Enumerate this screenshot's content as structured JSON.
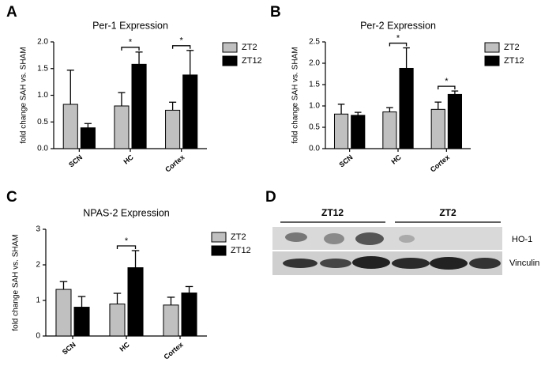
{
  "chart_data": [
    {
      "type": "bar",
      "panel": "A",
      "title": "Per-1 Expression",
      "y_label": "fold change SAH vs. SHAM",
      "categories": [
        "SCN",
        "HC",
        "Cortex"
      ],
      "series": [
        {
          "name": "ZT2",
          "color": "#c0c0c0",
          "values": [
            0.83,
            0.8,
            0.72
          ],
          "errors": [
            0.64,
            0.25,
            0.15
          ]
        },
        {
          "name": "ZT12",
          "color": "#000000",
          "values": [
            0.39,
            1.58,
            1.38
          ],
          "errors": [
            0.08,
            0.23,
            0.46
          ]
        }
      ],
      "ylim": [
        0,
        2.0
      ],
      "yticks": [
        {
          "value": 0,
          "label": "0.0"
        },
        0.5,
        {
          "value": 1,
          "label": "1.0"
        },
        1.5,
        {
          "value": 2,
          "label": "2.0"
        }
      ],
      "annotations": [
        {
          "category": 1,
          "text": "*"
        },
        {
          "category": 2,
          "text": "*"
        }
      ]
    },
    {
      "type": "bar",
      "panel": "B",
      "title": "Per-2 Expression",
      "y_label": "fold change SAH vs. SHAM",
      "categories": [
        "SCN",
        "HC",
        "Cortex"
      ],
      "series": [
        {
          "name": "ZT2",
          "color": "#c0c0c0",
          "values": [
            0.81,
            0.86,
            0.92
          ],
          "errors": [
            0.23,
            0.1,
            0.17
          ]
        },
        {
          "name": "ZT12",
          "color": "#000000",
          "values": [
            0.78,
            1.88,
            1.27
          ],
          "errors": [
            0.07,
            0.48,
            0.08
          ]
        }
      ],
      "ylim": [
        0,
        2.5
      ],
      "yticks": [
        {
          "value": 0,
          "label": "0.0"
        },
        0.5,
        {
          "value": 1,
          "label": "1.0"
        },
        1.5,
        {
          "value": 2,
          "label": "2.0"
        },
        2.5
      ],
      "annotations": [
        {
          "category": 1,
          "text": "*"
        },
        {
          "category": 2,
          "text": "*"
        }
      ]
    },
    {
      "type": "bar",
      "panel": "C",
      "title": "NPAS-2 Expression",
      "y_label": "fold change SAH vs. SHAM",
      "categories": [
        "SCN",
        "HC",
        "Cortex"
      ],
      "series": [
        {
          "name": "ZT2",
          "color": "#c0c0c0",
          "values": [
            1.31,
            0.9,
            0.87
          ],
          "errors": [
            0.22,
            0.3,
            0.22
          ]
        },
        {
          "name": "ZT12",
          "color": "#000000",
          "values": [
            0.81,
            1.92,
            1.21
          ],
          "errors": [
            0.3,
            0.48,
            0.18
          ]
        }
      ],
      "ylim": [
        0,
        3
      ],
      "yticks": [
        0,
        1,
        2,
        3
      ],
      "annotations": [
        {
          "category": 1,
          "text": "*"
        }
      ]
    }
  ],
  "blot": {
    "panel": "D",
    "groups": [
      "ZT12",
      "ZT2"
    ],
    "bands": [
      "HO-1",
      "Vinculin"
    ]
  }
}
